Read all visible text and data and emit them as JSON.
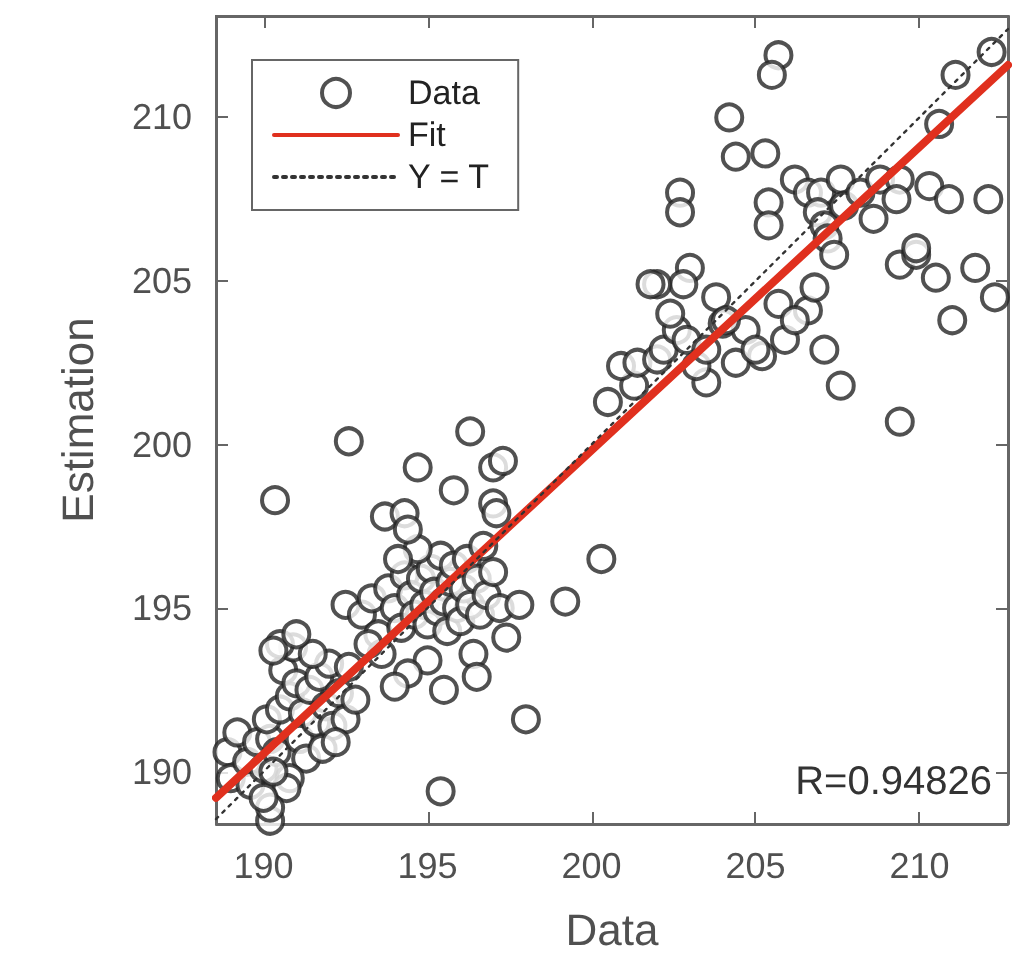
{
  "chart_data": {
    "type": "scatter",
    "xlabel": "Data",
    "ylabel": "Estimation",
    "annotations": [
      "R=0.94826"
    ],
    "xlim": [
      188.55,
      212.7
    ],
    "ylim": [
      188.4,
      213.1
    ],
    "xticks": [
      190,
      195,
      200,
      205,
      210
    ],
    "yticks": [
      190,
      195,
      200,
      205,
      210
    ],
    "grid": false,
    "legend": "top left",
    "series": [
      {
        "name": "Data",
        "marker": "circle",
        "color": "#262626",
        "x": [
          188.9,
          189.2,
          189.0,
          189.5,
          189.8,
          189.6,
          190.0,
          190.2,
          190.4,
          190.1,
          190.5,
          190.8,
          190.6,
          190.9,
          190.5,
          191.0,
          191.2,
          191.4,
          191.1,
          191.6,
          191.3,
          190.8,
          191.7,
          191.9,
          192.1,
          192.3,
          192.0,
          191.5,
          192.5,
          192.8,
          191.8,
          190.7,
          190.3,
          192.2,
          191.0,
          190.3,
          192.6,
          192.5,
          193.0,
          193.3,
          193.5,
          193.8,
          194.0,
          194.2,
          194.3,
          194.5,
          194.6,
          194.8,
          194.9,
          195.0,
          195.1,
          195.2,
          195.3,
          195.4,
          195.5,
          195.6,
          195.7,
          195.8,
          195.9,
          196.0,
          196.1,
          196.2,
          196.3,
          196.5,
          196.6,
          196.8,
          197.0,
          197.2,
          196.4,
          195.0,
          194.4,
          194.0,
          195.5,
          196.5,
          197.4,
          197.8,
          193.6,
          193.2,
          194.7,
          196.7,
          194.1,
          190.35,
          192.6,
          194.7,
          196.3,
          197.0,
          197.3,
          195.8,
          193.7,
          194.3,
          194.4,
          197.0,
          197.1,
          200.3,
          199.2,
          198.0,
          195.4,
          190.2,
          190.2,
          190.0,
          200.5,
          201.3,
          200.9,
          201.4,
          202.0,
          202.2,
          202.6,
          202.4,
          203.5,
          203.2,
          204.0,
          204.4,
          205.2,
          206.6,
          207.6,
          209.4,
          205.7,
          205.7,
          205.5,
          204.2,
          204.4,
          205.3,
          202.7,
          202.7,
          206.2,
          206.6,
          207.0,
          207.6,
          205.4,
          205.4,
          206.9,
          207.1,
          207.2,
          207.4,
          207.7,
          208.2,
          208.8,
          209.4,
          210.3,
          210.9,
          212.1,
          209.4,
          209.9,
          210.6,
          211.1,
          212.2,
          203.0,
          202.8,
          202.0,
          201.8,
          209.9,
          210.5,
          211.7,
          212.3,
          211.0,
          204.7,
          205.0,
          205.9,
          203.8,
          204.1,
          206.2,
          206.8,
          207.1,
          202.9,
          203.5,
          208.6,
          209.3
        ],
        "values": [
          190.6,
          191.2,
          189.8,
          190.3,
          190.9,
          189.6,
          190.1,
          191.0,
          190.6,
          191.6,
          191.9,
          192.3,
          193.1,
          193.8,
          193.9,
          192.7,
          191.8,
          192.5,
          191.0,
          191.5,
          190.4,
          189.8,
          192.9,
          192.0,
          191.4,
          192.4,
          193.3,
          193.6,
          191.6,
          192.2,
          190.7,
          189.5,
          190.0,
          190.9,
          194.2,
          193.7,
          193.2,
          195.1,
          194.8,
          195.3,
          194.2,
          195.6,
          195.0,
          194.4,
          196.0,
          195.4,
          194.8,
          195.9,
          195.1,
          194.5,
          196.2,
          195.5,
          194.9,
          196.6,
          195.2,
          194.3,
          195.8,
          196.3,
          195.0,
          194.6,
          195.6,
          196.5,
          195.1,
          195.9,
          194.8,
          195.4,
          196.1,
          195.0,
          193.6,
          193.4,
          193.0,
          192.6,
          192.5,
          192.9,
          194.1,
          195.1,
          193.6,
          193.9,
          196.8,
          196.9,
          196.5,
          198.3,
          200.1,
          199.3,
          200.4,
          199.3,
          199.5,
          198.6,
          197.8,
          197.9,
          197.4,
          198.2,
          197.9,
          196.5,
          195.2,
          191.6,
          189.4,
          188.5,
          188.9,
          189.2,
          201.3,
          201.8,
          202.4,
          202.5,
          202.6,
          202.9,
          203.5,
          204.0,
          201.9,
          202.4,
          203.7,
          202.5,
          202.7,
          204.1,
          201.8,
          200.7,
          204.3,
          211.9,
          211.3,
          210.0,
          208.8,
          208.9,
          207.7,
          207.1,
          208.1,
          207.7,
          207.7,
          208.1,
          207.4,
          206.7,
          207.1,
          206.7,
          206.3,
          205.8,
          207.3,
          207.7,
          208.1,
          208.1,
          207.9,
          207.5,
          207.5,
          205.5,
          205.8,
          209.8,
          211.3,
          212.0,
          205.4,
          204.9,
          204.9,
          204.9,
          206.0,
          205.1,
          205.4,
          204.5,
          203.8,
          203.5,
          202.9,
          203.2,
          204.5,
          203.8,
          203.8,
          204.8,
          202.9,
          203.2,
          202.9,
          206.9,
          207.5
        ]
      },
      {
        "name": "Fit",
        "type": "line",
        "marker": "none",
        "line_style": "solid",
        "color": "#e0301e",
        "x": [
          188.55,
          212.7
        ],
        "values": [
          189.2,
          211.6
        ]
      },
      {
        "name": "Y = T",
        "type": "line",
        "marker": "none",
        "line_style": "dotted",
        "color": "#333333",
        "x": [
          188.55,
          212.7
        ],
        "values": [
          188.55,
          212.7
        ]
      }
    ]
  }
}
